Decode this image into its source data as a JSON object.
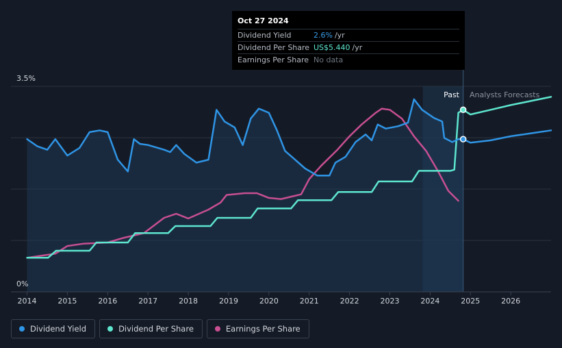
{
  "tooltip": {
    "date": "Oct 27 2024",
    "rows": [
      {
        "label": "Dividend Yield",
        "value": "2.6%",
        "unit": "/yr"
      },
      {
        "label": "Dividend Per Share",
        "value": "US$5.440",
        "unit": "/yr"
      },
      {
        "label": "Earnings Per Share",
        "value": "No data",
        "unit": ""
      }
    ]
  },
  "region_labels": {
    "past": "Past",
    "forecast": "Analysts Forecasts"
  },
  "legend": [
    {
      "label": "Dividend Yield",
      "color": "#2f95e6"
    },
    {
      "label": "Dividend Per Share",
      "color": "#5ee6cf"
    },
    {
      "label": "Earnings Per Share",
      "color": "#c84f92"
    }
  ],
  "chart_data": {
    "type": "line",
    "title": "",
    "xlabel": "",
    "ylabel": "",
    "xlim": [
      2013.6,
      2027.0
    ],
    "ylim": [
      0,
      3.5
    ],
    "y_ticks": [
      "0%",
      "3.5%"
    ],
    "x_ticks": [
      "2014",
      "2015",
      "2016",
      "2017",
      "2018",
      "2019",
      "2020",
      "2021",
      "2022",
      "2023",
      "2024",
      "2025",
      "2026"
    ],
    "past_end": 2024.82,
    "forecast_shade_start": 2023.82,
    "grid": true,
    "legend_position": "bottom-left",
    "series": [
      {
        "name": "Dividend Yield",
        "color": "#2f95e6",
        "x": [
          2014.0,
          2014.25,
          2014.5,
          2014.7,
          2015.0,
          2015.3,
          2015.55,
          2015.8,
          2016.0,
          2016.25,
          2016.5,
          2016.65,
          2016.8,
          2017.0,
          2017.4,
          2017.55,
          2017.7,
          2017.9,
          2018.2,
          2018.5,
          2018.7,
          2018.9,
          2019.15,
          2019.35,
          2019.55,
          2019.75,
          2020.0,
          2020.2,
          2020.4,
          2020.6,
          2020.9,
          2021.2,
          2021.5,
          2021.65,
          2021.9,
          2022.15,
          2022.4,
          2022.55,
          2022.7,
          2022.9,
          2023.2,
          2023.45,
          2023.6,
          2023.8,
          2024.1,
          2024.3,
          2024.35,
          2024.55,
          2024.7,
          2024.82
        ],
        "y": [
          2.6,
          2.48,
          2.42,
          2.6,
          2.32,
          2.45,
          2.72,
          2.75,
          2.72,
          2.25,
          2.05,
          2.6,
          2.52,
          2.5,
          2.42,
          2.38,
          2.5,
          2.35,
          2.2,
          2.25,
          3.1,
          2.9,
          2.8,
          2.5,
          2.95,
          3.12,
          3.05,
          2.75,
          2.4,
          2.28,
          2.1,
          1.98,
          1.98,
          2.2,
          2.3,
          2.55,
          2.68,
          2.58,
          2.85,
          2.78,
          2.82,
          2.88,
          3.28,
          3.1,
          2.96,
          2.9,
          2.62,
          2.55,
          2.6,
          2.6
        ]
      },
      {
        "name": "Dividend Yield (forecast)",
        "color": "#2f95e6",
        "x": [
          2024.82,
          2025.0,
          2025.5,
          2026.0,
          2026.5,
          2027.0
        ],
        "y": [
          2.6,
          2.54,
          2.58,
          2.65,
          2.7,
          2.75
        ]
      },
      {
        "name": "Dividend Per Share",
        "color": "#5ee6cf",
        "x": [
          2014.0,
          2014.52,
          2014.72,
          2015.55,
          2015.72,
          2016.5,
          2016.68,
          2017.5,
          2017.68,
          2018.55,
          2018.72,
          2019.55,
          2019.72,
          2020.55,
          2020.72,
          2021.55,
          2021.72,
          2022.55,
          2022.72,
          2023.55,
          2023.72,
          2024.5,
          2024.6,
          2024.7,
          2024.82
        ],
        "y": [
          0.58,
          0.58,
          0.7,
          0.7,
          0.84,
          0.84,
          1.0,
          1.0,
          1.12,
          1.12,
          1.26,
          1.26,
          1.42,
          1.42,
          1.56,
          1.56,
          1.7,
          1.7,
          1.88,
          1.88,
          2.06,
          2.06,
          2.08,
          3.05,
          3.1
        ]
      },
      {
        "name": "Dividend Per Share (forecast)",
        "color": "#5ee6cf",
        "x": [
          2024.82,
          2025.0,
          2025.5,
          2026.0,
          2026.5,
          2027.0
        ],
        "y": [
          3.1,
          3.02,
          3.1,
          3.18,
          3.25,
          3.32
        ]
      },
      {
        "name": "Earnings Per Share",
        "color": "#c84f92",
        "x": [
          2014.0,
          2014.4,
          2014.7,
          2015.0,
          2015.4,
          2016.0,
          2016.4,
          2016.9,
          2017.4,
          2017.7,
          2018.0,
          2018.5,
          2018.8,
          2018.95,
          2019.4,
          2019.7,
          2020.0,
          2020.3,
          2020.55,
          2020.8,
          2021.0,
          2021.3,
          2021.7,
          2022.0,
          2022.3,
          2022.65,
          2022.8,
          2023.0,
          2023.3,
          2023.6,
          2023.9,
          2024.2,
          2024.45,
          2024.7
        ],
        "y": [
          0.58,
          0.62,
          0.65,
          0.78,
          0.82,
          0.84,
          0.92,
          1.0,
          1.26,
          1.33,
          1.25,
          1.4,
          1.52,
          1.65,
          1.68,
          1.68,
          1.6,
          1.58,
          1.62,
          1.66,
          1.92,
          2.15,
          2.42,
          2.65,
          2.85,
          3.05,
          3.12,
          3.1,
          2.95,
          2.65,
          2.4,
          2.05,
          1.72,
          1.55
        ]
      }
    ]
  }
}
